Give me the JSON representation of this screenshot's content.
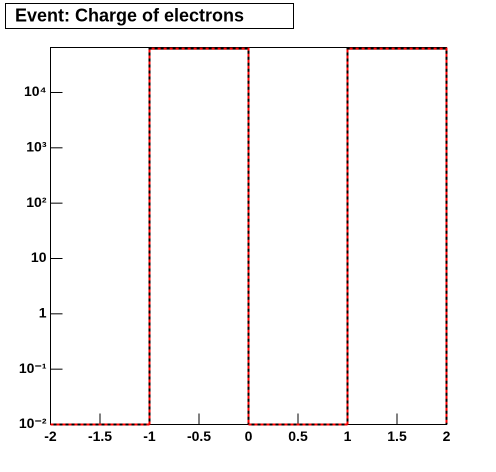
{
  "chart_data": {
    "type": "histogram",
    "title": "Event: Charge of electrons",
    "bins": [
      -2,
      -1,
      0,
      1,
      2
    ],
    "counts": [
      0,
      62000,
      0,
      62000
    ],
    "color": "#000000",
    "dash_color": "#ff0000",
    "xlim": [
      -2,
      2
    ],
    "xticks": [
      -2,
      -1.5,
      -1,
      -0.5,
      0,
      0.5,
      1,
      1.5,
      2
    ],
    "ylim": [
      0.01,
      65000
    ],
    "log_y": true,
    "yticks": [
      {
        "value": 0.01,
        "label": "10⁻²"
      },
      {
        "value": 0.1,
        "label": "10⁻¹"
      },
      1,
      10,
      {
        "value": 100,
        "label": "10²"
      },
      {
        "value": 1000,
        "label": "10³"
      },
      {
        "value": 10000,
        "label": "10⁴"
      }
    ],
    "grid": false
  }
}
